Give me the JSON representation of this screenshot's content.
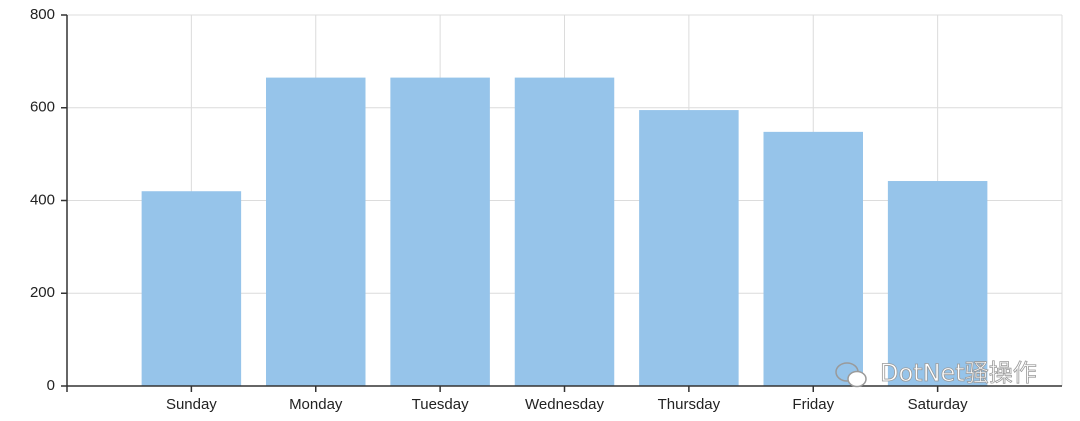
{
  "chart_data": {
    "type": "bar",
    "categories": [
      "Sunday",
      "Monday",
      "Tuesday",
      "Wednesday",
      "Thursday",
      "Friday",
      "Saturday"
    ],
    "values": [
      420,
      665,
      665,
      665,
      595,
      548,
      442
    ],
    "color": "#94c3ea",
    "ylim": [
      0,
      800
    ],
    "yticks": [
      0,
      200,
      400,
      600,
      800
    ],
    "grid": true,
    "watermark": "DotNet骚操作"
  }
}
